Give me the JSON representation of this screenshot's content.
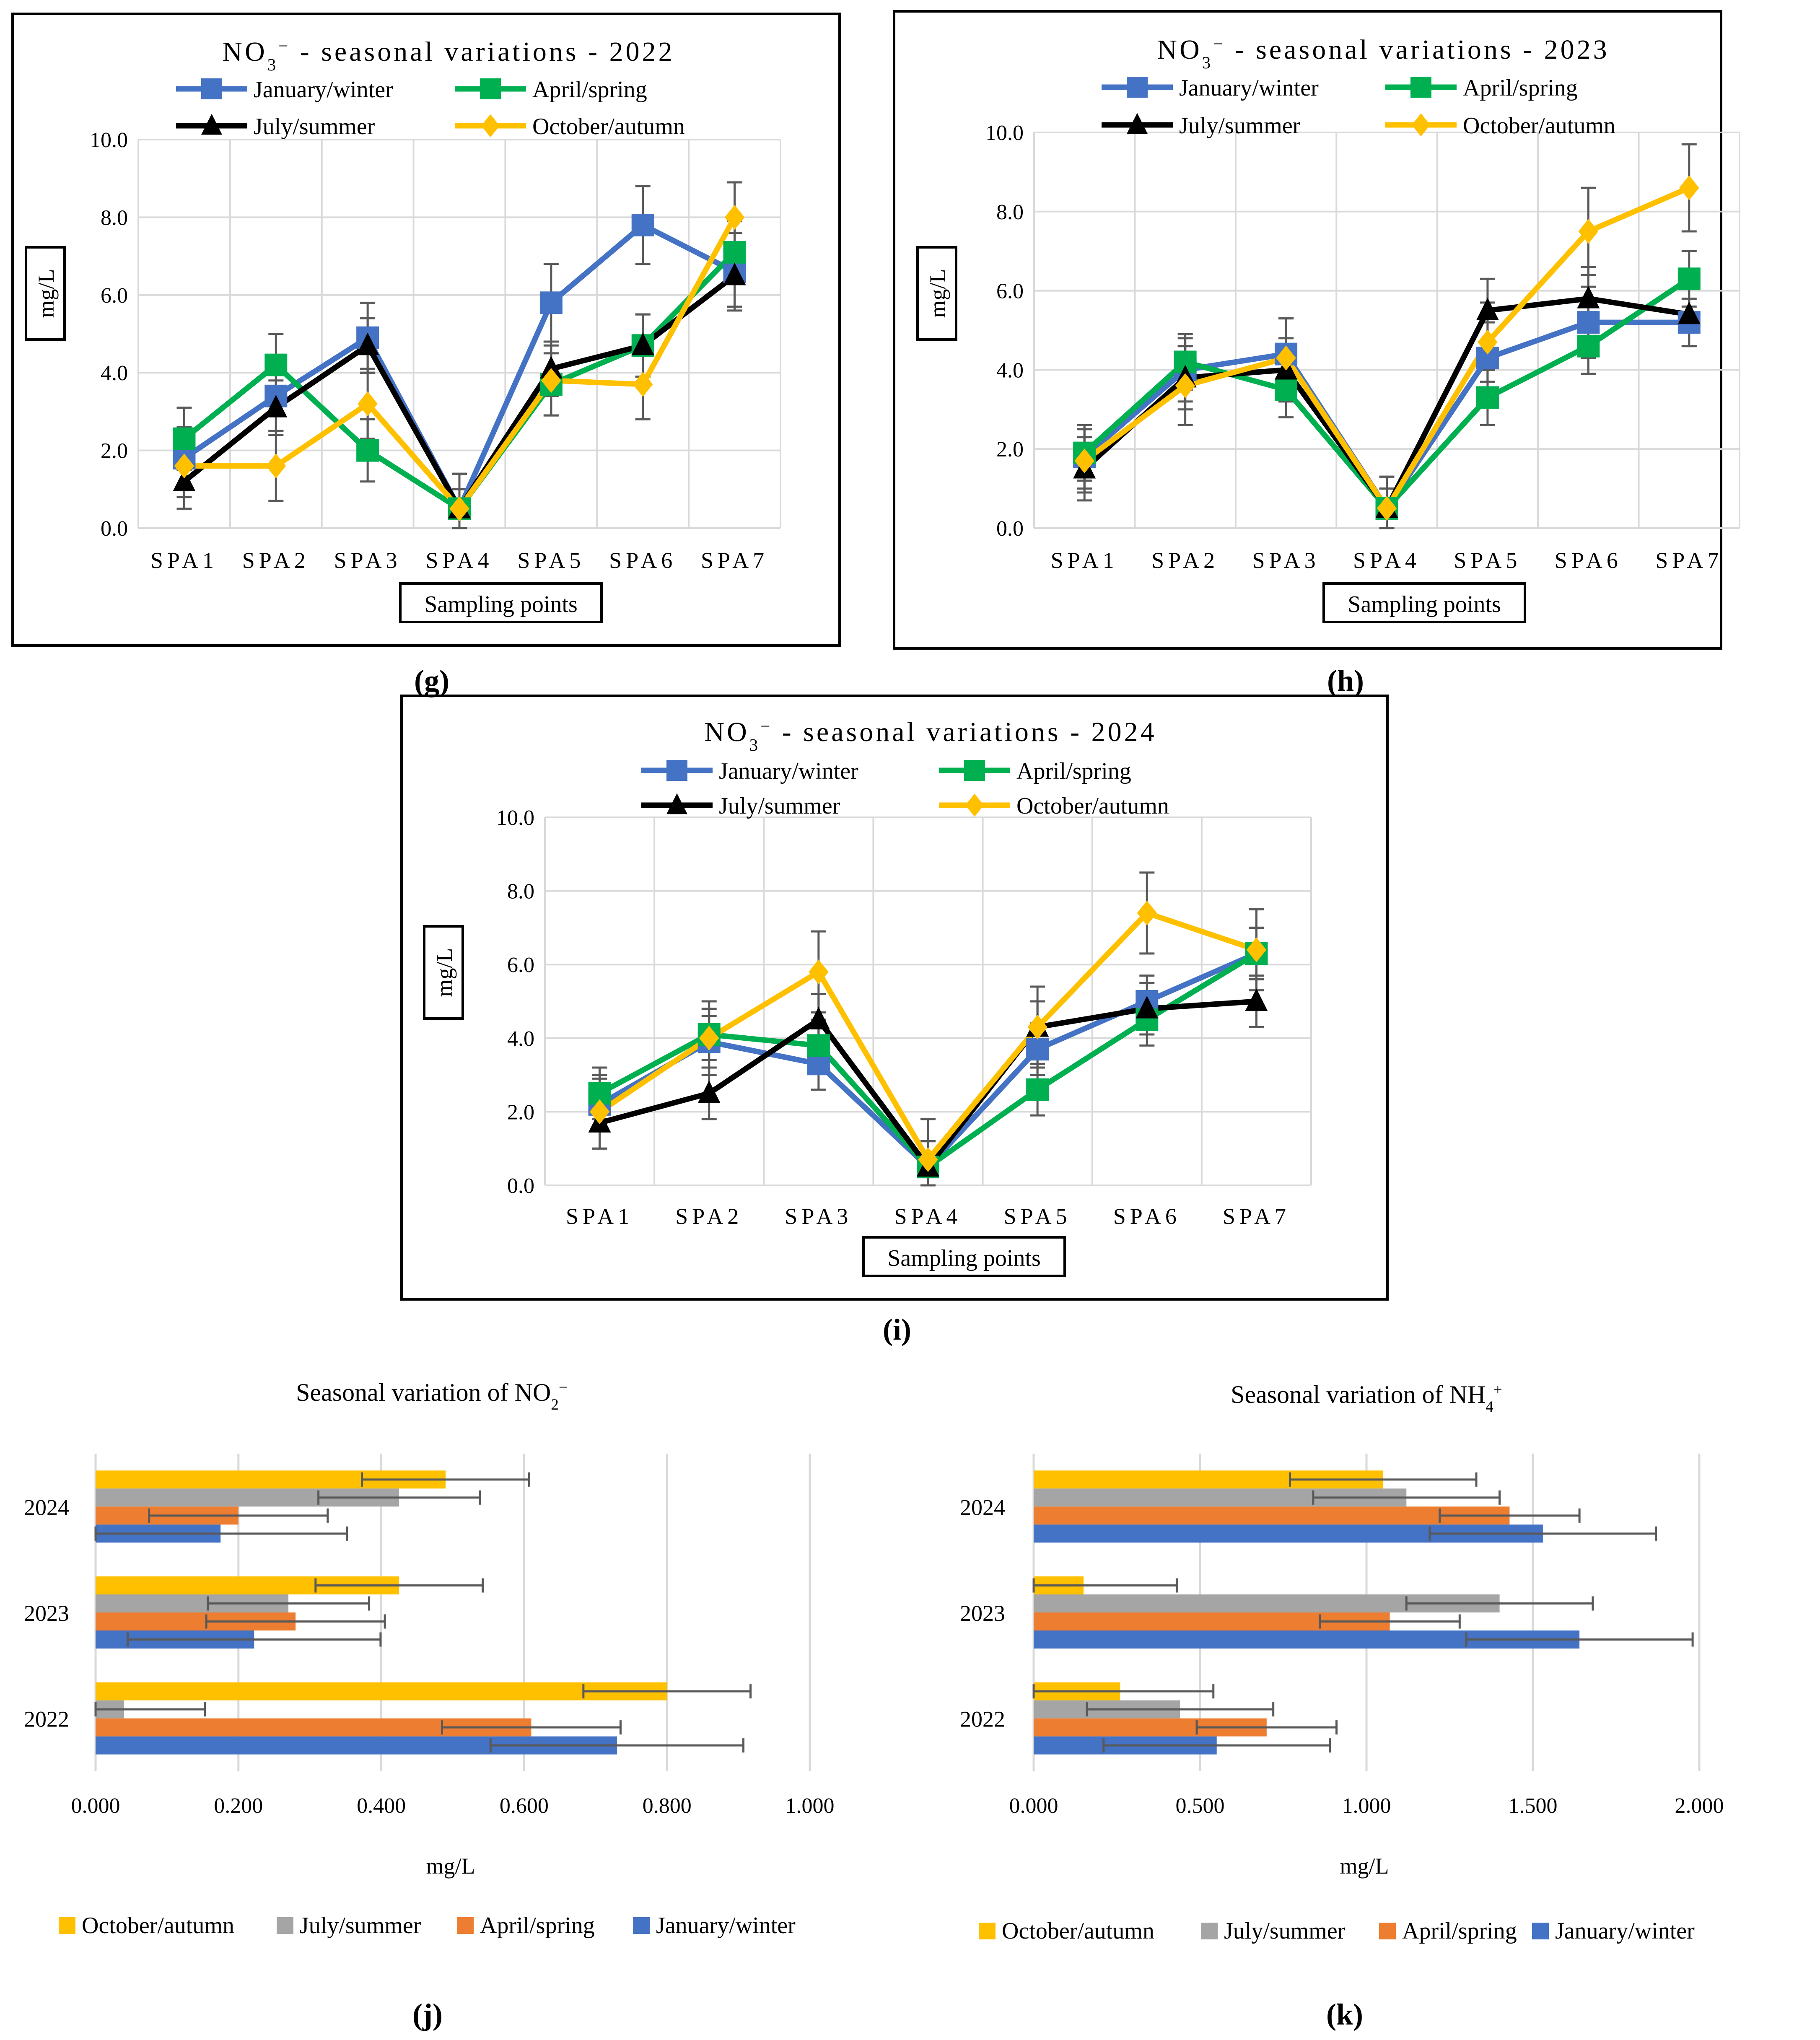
{
  "colors": {
    "winter": "#4472C4",
    "spring": "#00B050",
    "summer": "#000000",
    "autumn": "#FFC000",
    "bar_autumn": "#FFC000",
    "bar_summer": "#A5A5A5",
    "bar_spring": "#ED7D31",
    "bar_winter": "#4472C4",
    "grid": "#D9D9D9",
    "errorbar": "#595959"
  },
  "legend": {
    "winter": "January/winter",
    "spring": "April/spring",
    "summer": "July/summer",
    "autumn": "October/autumn"
  },
  "panel_labels": [
    "(g)",
    "(h)",
    "(i)",
    "(j)",
    "(k)"
  ],
  "chart_data": [
    {
      "id": "g",
      "type": "line",
      "title": "NO₃⁻ - seasonal variations - 2022",
      "title_base": "NO",
      "title_sub": "3",
      "title_sup": "−",
      "title_rest": " - seasonal variations - 2022",
      "categories": [
        "SPA1",
        "SPA2",
        "SPA3",
        "SPA4",
        "SPA5",
        "SPA6",
        "SPA7"
      ],
      "xlabel": "Sampling points",
      "ylabel": "mg/L",
      "ylim": [
        0,
        10
      ],
      "yticks": [
        "0.0",
        "2.0",
        "4.0",
        "6.0",
        "8.0",
        "10.0"
      ],
      "series": [
        {
          "key": "winter",
          "name": "January/winter",
          "marker": "square",
          "values": [
            1.8,
            3.4,
            4.9,
            0.5,
            5.8,
            7.8,
            6.6
          ],
          "errors": [
            0.8,
            0.9,
            0.9,
            0.9,
            1.0,
            1.0,
            1.0
          ]
        },
        {
          "key": "spring",
          "name": "April/spring",
          "marker": "square",
          "values": [
            2.3,
            4.2,
            2.0,
            0.5,
            3.7,
            4.7,
            7.1
          ],
          "errors": [
            0.8,
            0.8,
            0.8,
            0.5,
            0.8,
            0.8,
            0.8
          ]
        },
        {
          "key": "summer",
          "name": "July/summer",
          "marker": "triangle",
          "values": [
            1.2,
            3.1,
            4.7,
            0.5,
            4.1,
            4.7,
            6.5
          ],
          "errors": [
            0.7,
            0.7,
            0.7,
            0.5,
            0.7,
            0.8,
            0.8
          ]
        },
        {
          "key": "autumn",
          "name": "October/autumn",
          "marker": "diamond",
          "values": [
            1.6,
            1.6,
            3.2,
            0.5,
            3.8,
            3.7,
            8.0
          ],
          "errors": [
            0.8,
            0.9,
            0.9,
            0.9,
            0.9,
            0.9,
            0.9
          ]
        }
      ]
    },
    {
      "id": "h",
      "type": "line",
      "title": "NO₃⁻ - seasonal variations - 2023",
      "title_base": "NO",
      "title_sub": "3",
      "title_sup": "−",
      "title_rest": " - seasonal variations - 2023",
      "categories": [
        "SPA1",
        "SPA2",
        "SPA3",
        "SPA4",
        "SPA5",
        "SPA6",
        "SPA7"
      ],
      "xlabel": "Sampling points",
      "ylabel": "mg/L",
      "ylim": [
        0,
        10
      ],
      "yticks": [
        "0.0",
        "2.0",
        "4.0",
        "6.0",
        "8.0",
        "10.0"
      ],
      "series": [
        {
          "key": "winter",
          "name": "January/winter",
          "marker": "square",
          "values": [
            1.8,
            4.0,
            4.4,
            0.5,
            4.3,
            5.2,
            5.2
          ],
          "errors": [
            0.8,
            0.8,
            0.9,
            0.8,
            0.9,
            0.9,
            0.6
          ]
        },
        {
          "key": "spring",
          "name": "April/spring",
          "marker": "square",
          "values": [
            1.9,
            4.2,
            3.5,
            0.5,
            3.3,
            4.6,
            6.3
          ],
          "errors": [
            0.7,
            0.7,
            0.7,
            0.5,
            0.7,
            0.7,
            0.7
          ]
        },
        {
          "key": "summer",
          "name": "July/summer",
          "marker": "triangle",
          "values": [
            1.5,
            3.8,
            4.0,
            0.5,
            5.5,
            5.8,
            5.4
          ],
          "errors": [
            0.8,
            0.8,
            0.8,
            0.5,
            0.8,
            0.8,
            0.8
          ]
        },
        {
          "key": "autumn",
          "name": "October/autumn",
          "marker": "diamond",
          "values": [
            1.7,
            3.6,
            4.3,
            0.5,
            4.7,
            7.5,
            8.6
          ],
          "errors": [
            0.8,
            1.0,
            1.0,
            0.8,
            1.0,
            1.1,
            1.1
          ]
        }
      ]
    },
    {
      "id": "i",
      "type": "line",
      "title": "NO₃⁻ - seasonal variations - 2024",
      "title_base": "NO",
      "title_sub": "3",
      "title_sup": "−",
      "title_rest": " - seasonal variations - 2024",
      "categories": [
        "SPA1",
        "SPA2",
        "SPA3",
        "SPA4",
        "SPA5",
        "SPA6",
        "SPA7"
      ],
      "xlabel": "Sampling points",
      "ylabel": "mg/L",
      "ylim": [
        0,
        10
      ],
      "yticks": [
        "0.0",
        "2.0",
        "4.0",
        "6.0",
        "8.0",
        "10.0"
      ],
      "series": [
        {
          "key": "winter",
          "name": "January/winter",
          "marker": "square",
          "values": [
            2.2,
            3.9,
            3.3,
            0.5,
            3.7,
            5.0,
            6.3
          ],
          "errors": [
            0.7,
            0.7,
            0.7,
            0.7,
            0.7,
            0.7,
            0.7
          ]
        },
        {
          "key": "spring",
          "name": "April/spring",
          "marker": "square",
          "values": [
            2.5,
            4.1,
            3.8,
            0.5,
            2.6,
            4.5,
            6.3
          ],
          "errors": [
            0.7,
            0.7,
            0.7,
            0.7,
            0.7,
            0.7,
            0.7
          ]
        },
        {
          "key": "summer",
          "name": "July/summer",
          "marker": "triangle",
          "values": [
            1.7,
            2.5,
            4.5,
            0.5,
            4.3,
            4.8,
            5.0
          ],
          "errors": [
            0.7,
            0.7,
            0.7,
            0.7,
            0.7,
            0.7,
            0.7
          ]
        },
        {
          "key": "autumn",
          "name": "October/autumn",
          "marker": "diamond",
          "values": [
            2.0,
            4.0,
            5.8,
            0.7,
            4.3,
            7.4,
            6.4
          ],
          "errors": [
            1.0,
            1.0,
            1.1,
            1.1,
            1.1,
            1.1,
            1.1
          ]
        }
      ]
    },
    {
      "id": "j",
      "type": "bar",
      "orientation": "horizontal",
      "title": "Seasonal variation of NO₂⁻",
      "title_base": "Seasonal variation of NO",
      "title_sub": "2",
      "title_sup": "−",
      "categories": [
        "2024",
        "2023",
        "2022"
      ],
      "xlabel": "mg/L",
      "xlim": [
        0,
        1.0
      ],
      "xticks": [
        "0.000",
        "0.200",
        "0.400",
        "0.600",
        "0.800",
        "1.000"
      ],
      "series": [
        {
          "key": "bar_autumn",
          "name": "October/autumn",
          "values": [
            0.49,
            0.425,
            0.8
          ],
          "errors": [
            0.117,
            0.117,
            0.117
          ]
        },
        {
          "key": "bar_summer",
          "name": "July/summer",
          "values": [
            0.425,
            0.27,
            0.04
          ],
          "errors": [
            0.113,
            0.113,
            0.113
          ]
        },
        {
          "key": "bar_spring",
          "name": "April/spring",
          "values": [
            0.2,
            0.28,
            0.61
          ],
          "errors": [
            0.125,
            0.125,
            0.125
          ]
        },
        {
          "key": "bar_winter",
          "name": "January/winter",
          "values": [
            0.175,
            0.222,
            0.73
          ],
          "errors": [
            0.177,
            0.177,
            0.177
          ]
        }
      ]
    },
    {
      "id": "k",
      "type": "bar",
      "orientation": "horizontal",
      "title": "Seasonal variation of NH₄⁺",
      "title_base": "Seasonal variation of NH",
      "title_sub": "4",
      "title_sup": "+",
      "categories": [
        "2024",
        "2023",
        "2022"
      ],
      "xlabel": "mg/L",
      "xlim": [
        0,
        2.0
      ],
      "xticks": [
        "0.000",
        "0.500",
        "1.000",
        "1.500",
        "2.000"
      ],
      "series": [
        {
          "key": "bar_autumn",
          "name": "October/autumn",
          "values": [
            1.05,
            0.15,
            0.26
          ],
          "errors": [
            0.28,
            0.28,
            0.28
          ]
        },
        {
          "key": "bar_summer",
          "name": "July/summer",
          "values": [
            1.12,
            1.4,
            0.44
          ],
          "errors": [
            0.28,
            0.28,
            0.28
          ]
        },
        {
          "key": "bar_spring",
          "name": "April/spring",
          "values": [
            1.43,
            1.07,
            0.7
          ],
          "errors": [
            0.21,
            0.21,
            0.21
          ]
        },
        {
          "key": "bar_winter",
          "name": "January/winter",
          "values": [
            1.53,
            1.64,
            0.55
          ],
          "errors": [
            0.34,
            0.34,
            0.34
          ]
        }
      ]
    }
  ]
}
